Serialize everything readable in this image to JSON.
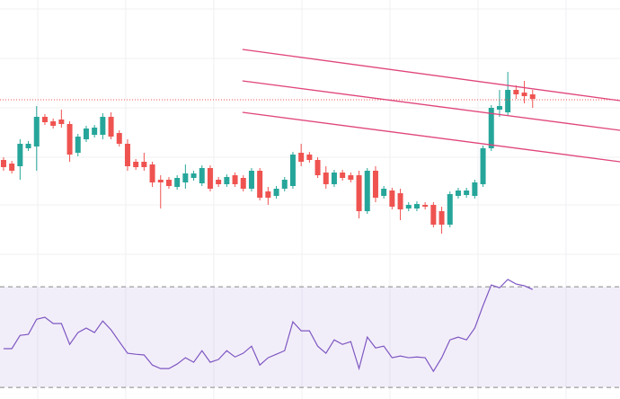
{
  "chart_data": [
    {
      "type": "candlestick",
      "up_color": "#26a69a",
      "down_color": "#ef5350",
      "open": [
        112,
        108,
        105,
        125,
        127,
        160,
        155,
        157,
        152,
        120,
        135,
        140,
        140,
        160,
        142,
        130,
        110,
        110,
        107,
        90,
        90,
        82,
        87,
        92,
        86,
        103,
        90,
        85,
        95,
        92,
        80,
        100,
        77,
        72,
        80,
        83,
        120,
        118,
        112,
        98,
        85,
        98,
        95,
        95,
        55,
        100,
        72,
        78,
        75,
        58,
        58,
        62,
        62,
        55,
        40,
        72,
        73,
        72,
        85,
        125,
        168,
        165,
        190,
        187,
        185
      ],
      "high": [
        115,
        111,
        135,
        133,
        172,
        163,
        158,
        168,
        155,
        141,
        150,
        151,
        164,
        165,
        145,
        135,
        113,
        120,
        110,
        95,
        93,
        95,
        107,
        100,
        106,
        106,
        93,
        96,
        98,
        95,
        103,
        103,
        82,
        83,
        93,
        121,
        130,
        121,
        115,
        105,
        101,
        101,
        98,
        100,
        103,
        105,
        83,
        81,
        80,
        65,
        66,
        65,
        65,
        60,
        77,
        81,
        81,
        90,
        128,
        173,
        190,
        210,
        195,
        200,
        190
      ],
      "low": [
        100,
        97,
        90,
        122,
        100,
        151,
        147,
        148,
        110,
        116,
        132,
        137,
        135,
        135,
        127,
        100,
        101,
        100,
        82,
        58,
        80,
        79,
        80,
        89,
        83,
        77,
        82,
        82,
        82,
        77,
        77,
        67,
        62,
        69,
        77,
        80,
        105,
        109,
        92,
        80,
        82,
        89,
        87,
        47,
        52,
        65,
        69,
        57,
        45,
        55,
        55,
        57,
        37,
        30,
        37,
        69,
        70,
        69,
        82,
        122,
        160,
        162,
        180,
        175,
        170
      ],
      "close": [
        104,
        100,
        130,
        130,
        160,
        154,
        150,
        152,
        118,
        138,
        147,
        148,
        160,
        138,
        130,
        105,
        104,
        104,
        87,
        87,
        83,
        92,
        97,
        97,
        103,
        80,
        85,
        93,
        85,
        80,
        100,
        70,
        70,
        80,
        90,
        118,
        110,
        112,
        95,
        85,
        98,
        92,
        90,
        55,
        100,
        70,
        80,
        60,
        57,
        62,
        63,
        60,
        40,
        40,
        74,
        78,
        78,
        87,
        125,
        170,
        172,
        190,
        185,
        183,
        180
      ],
      "xlim": [
        -0.43,
        74.57
      ],
      "ylim": [
        0,
        290
      ],
      "xticks": [
        4.13,
        14.78,
        25.43,
        36.09,
        46.74,
        57.39,
        68.04
      ],
      "yticks": [
        7,
        62,
        115,
        170,
        225,
        280
      ],
      "grid": true,
      "price_line": 179,
      "price_line_color": "#ef5350",
      "channel_color": "#e0457b",
      "channel": [
        {
          "x": [
            28.9,
            74.57
          ],
          "y": [
            235,
            178
          ]
        },
        {
          "x": [
            28.9,
            74.57
          ],
          "y": [
            200,
            145
          ]
        },
        {
          "x": [
            28.9,
            74.57
          ],
          "y": [
            165,
            110
          ]
        }
      ]
    },
    {
      "type": "line",
      "color": "#7e57c2",
      "band_color": "#7e57c2",
      "values": [
        45.4,
        45.4,
        50.7,
        51.1,
        57.1,
        57.9,
        55.4,
        55.4,
        47.1,
        51.8,
        53.6,
        51.8,
        56.4,
        52.9,
        48.2,
        43.6,
        43.2,
        42.9,
        38.9,
        37.5,
        37.5,
        39.3,
        41.8,
        40.0,
        44.6,
        40.0,
        41.1,
        44.6,
        42.1,
        43.6,
        46.4,
        38.9,
        41.8,
        43.2,
        44.6,
        56.1,
        52.5,
        52.5,
        46.4,
        43.6,
        48.9,
        47.1,
        48.2,
        37.5,
        50.0,
        45.7,
        46.4,
        41.8,
        42.5,
        41.8,
        42.1,
        41.8,
        36.4,
        41.8,
        48.9,
        50.0,
        48.9,
        53.6,
        62.5,
        70.7,
        69.6,
        72.9,
        71.1,
        70.4,
        68.9
      ],
      "xlim": [
        -0.43,
        74.57
      ],
      "ylim": [
        25.4,
        80.4
      ],
      "bands": [
        30,
        70
      ]
    }
  ]
}
